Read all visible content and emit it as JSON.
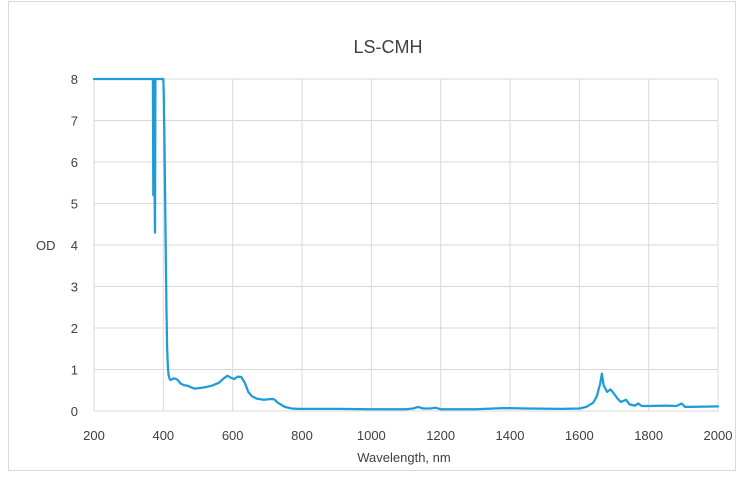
{
  "chart_data": {
    "type": "line",
    "title": "LS-CMH",
    "xlabel": "Wavelength, nm",
    "ylabel": "OD",
    "xlim": [
      200,
      2000
    ],
    "ylim": [
      0,
      8
    ],
    "x_ticks": [
      200,
      400,
      600,
      800,
      1000,
      1200,
      1400,
      1600,
      1800,
      2000
    ],
    "y_ticks": [
      0,
      1,
      2,
      3,
      4,
      5,
      6,
      7,
      8
    ],
    "grid": true,
    "legend": "none",
    "colors": {
      "line": "#1F9BD7",
      "grid": "#d9d9d9",
      "text": "#404040"
    },
    "series": [
      {
        "x": [
          200,
          370,
          371,
          372,
          373,
          374,
          375,
          376,
          377,
          378,
          380,
          382,
          384,
          386,
          388,
          390,
          392,
          394,
          396,
          398,
          400,
          401,
          403,
          405,
          407,
          409,
          411,
          413,
          415,
          417,
          420,
          425,
          430,
          440,
          450,
          460,
          470,
          480,
          490,
          500,
          520,
          540,
          560,
          575,
          585,
          595,
          605,
          615,
          625,
          635,
          645,
          655,
          670,
          690,
          710,
          720,
          730,
          750,
          770,
          790,
          800,
          900,
          1000,
          1100,
          1120,
          1135,
          1150,
          1170,
          1185,
          1200,
          1300,
          1380,
          1450,
          1550,
          1600,
          1620,
          1640,
          1650,
          1660,
          1665,
          1670,
          1680,
          1690,
          1700,
          1710,
          1720,
          1735,
          1745,
          1760,
          1770,
          1780,
          1800,
          1850,
          1880,
          1895,
          1905,
          1920,
          2000
        ],
        "y": [
          8,
          8,
          5.2,
          8,
          8,
          7.0,
          5.0,
          4.3,
          8,
          8,
          8,
          8,
          8,
          8,
          8,
          8,
          8,
          8,
          8,
          8,
          8,
          7.7,
          6.6,
          5.2,
          3.7,
          2.4,
          1.55,
          1.1,
          0.88,
          0.8,
          0.75,
          0.76,
          0.79,
          0.76,
          0.66,
          0.62,
          0.61,
          0.57,
          0.54,
          0.55,
          0.57,
          0.61,
          0.68,
          0.79,
          0.85,
          0.8,
          0.77,
          0.83,
          0.82,
          0.68,
          0.46,
          0.36,
          0.3,
          0.27,
          0.29,
          0.28,
          0.2,
          0.1,
          0.06,
          0.05,
          0.05,
          0.05,
          0.04,
          0.04,
          0.06,
          0.1,
          0.06,
          0.06,
          0.08,
          0.04,
          0.04,
          0.07,
          0.06,
          0.05,
          0.06,
          0.1,
          0.2,
          0.35,
          0.65,
          0.9,
          0.62,
          0.46,
          0.52,
          0.42,
          0.3,
          0.22,
          0.27,
          0.16,
          0.13,
          0.18,
          0.12,
          0.12,
          0.13,
          0.12,
          0.18,
          0.1,
          0.1,
          0.11
        ]
      }
    ]
  }
}
